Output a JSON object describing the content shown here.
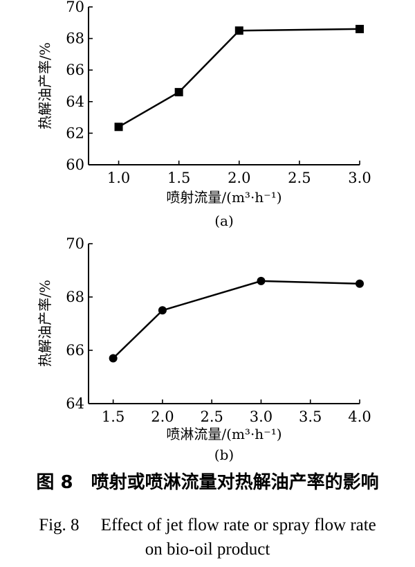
{
  "chart_data": [
    {
      "type": "line",
      "panel_label": "(a)",
      "xlabel": "喷射流量/(m³·h⁻¹)",
      "ylabel": "热解油产率/%",
      "x": [
        1.0,
        1.5,
        2.0,
        3.0
      ],
      "series": [
        {
          "values": [
            62.4,
            64.6,
            68.5,
            68.6
          ],
          "marker": "square"
        }
      ],
      "xticks": [
        "1.0",
        "1.5",
        "2.0",
        "2.5",
        "3.0"
      ],
      "xtick_values": [
        1.0,
        1.5,
        2.0,
        2.5,
        3.0
      ],
      "yticks": [
        "60",
        "62",
        "64",
        "66",
        "68",
        "70"
      ],
      "ytick_values": [
        60,
        62,
        64,
        66,
        68,
        70
      ],
      "xlim": [
        0.75,
        3.0
      ],
      "ylim": [
        60,
        70
      ],
      "grid": false
    },
    {
      "type": "line",
      "panel_label": "(b)",
      "xlabel": "喷淋流量/(m³·h⁻¹)",
      "ylabel": "热解油产率/%",
      "x": [
        1.5,
        2.0,
        3.0,
        4.0
      ],
      "series": [
        {
          "values": [
            65.7,
            67.5,
            68.6,
            68.5
          ],
          "marker": "circle"
        }
      ],
      "xticks": [
        "1.5",
        "2.0",
        "2.5",
        "3.0",
        "3.5",
        "4.0"
      ],
      "xtick_values": [
        1.5,
        2.0,
        2.5,
        3.0,
        3.5,
        4.0
      ],
      "yticks": [
        "64",
        "66",
        "68",
        "70"
      ],
      "ytick_values": [
        64,
        66,
        68,
        70
      ],
      "xlim": [
        1.25,
        4.0
      ],
      "ylim": [
        64,
        70
      ],
      "grid": false
    }
  ],
  "caption": {
    "cn": "图 8　喷射或喷淋流量对热解油产率的影响",
    "en_line1": "Fig. 8　 Effect of jet flow rate or spray flow rate",
    "en_line2": "on bio-oil product"
  }
}
